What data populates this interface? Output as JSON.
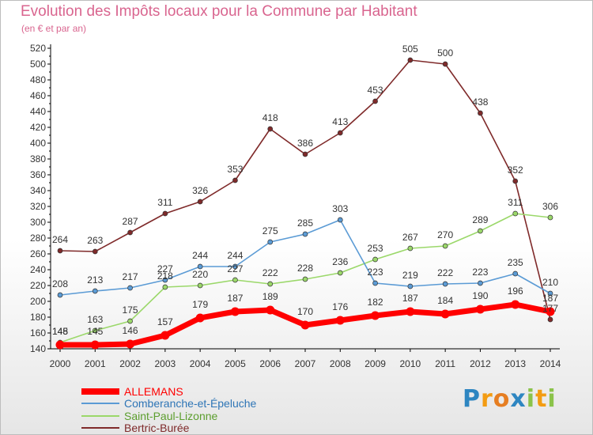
{
  "chart_data": {
    "type": "line",
    "title": "Evolution des Impôts locaux pour la Commune par Habitant",
    "subtitle": "(en € et par an)",
    "x": [
      "2000",
      "2001",
      "2002",
      "2003",
      "2004",
      "2005",
      "2006",
      "2007",
      "2008",
      "2009",
      "2010",
      "2011",
      "2012",
      "2013",
      "2014"
    ],
    "ylim": [
      140,
      520
    ],
    "yticks": [
      140,
      160,
      180,
      200,
      220,
      240,
      260,
      280,
      300,
      320,
      340,
      360,
      380,
      400,
      420,
      440,
      460,
      480,
      500,
      520
    ],
    "grid": false,
    "legend_position": "bottom-left",
    "series": [
      {
        "name": "ALLEMANS",
        "color": "#ff0000",
        "values": [
          145,
          145,
          146,
          157,
          179,
          187,
          189,
          170,
          176,
          182,
          187,
          184,
          190,
          196,
          187
        ]
      },
      {
        "name": "Comberanche-et-Épeluche",
        "color": "#5b9bd5",
        "values": [
          208,
          213,
          217,
          227,
          244,
          244,
          275,
          285,
          303,
          223,
          219,
          222,
          223,
          235,
          210
        ]
      },
      {
        "name": "Saint-Paul-Lizonne",
        "color": "#9bd86a",
        "values": [
          148,
          163,
          175,
          218,
          220,
          227,
          222,
          228,
          236,
          253,
          267,
          270,
          289,
          311,
          306
        ]
      },
      {
        "name": "Bertric-Burée",
        "color": "#7f2a2a",
        "values": [
          264,
          263,
          287,
          311,
          326,
          353,
          418,
          386,
          413,
          453,
          505,
          500,
          438,
          352,
          177
        ]
      }
    ]
  },
  "legend": {
    "items": [
      "ALLEMANS",
      "Comberanche-et-Épeluche",
      "Saint-Paul-Lizonne",
      "Bertric-Burée"
    ]
  },
  "logo": {
    "letters": [
      "P",
      "r",
      "o",
      "x",
      "i",
      "t",
      "i"
    ]
  }
}
